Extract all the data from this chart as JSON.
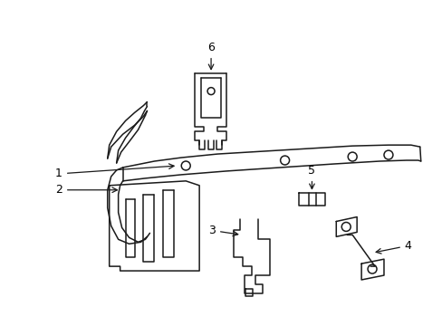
{
  "bg_color": "#ffffff",
  "line_color": "#1a1a1a",
  "line_width": 1.1,
  "fig_width": 4.89,
  "fig_height": 3.6,
  "dpi": 100
}
